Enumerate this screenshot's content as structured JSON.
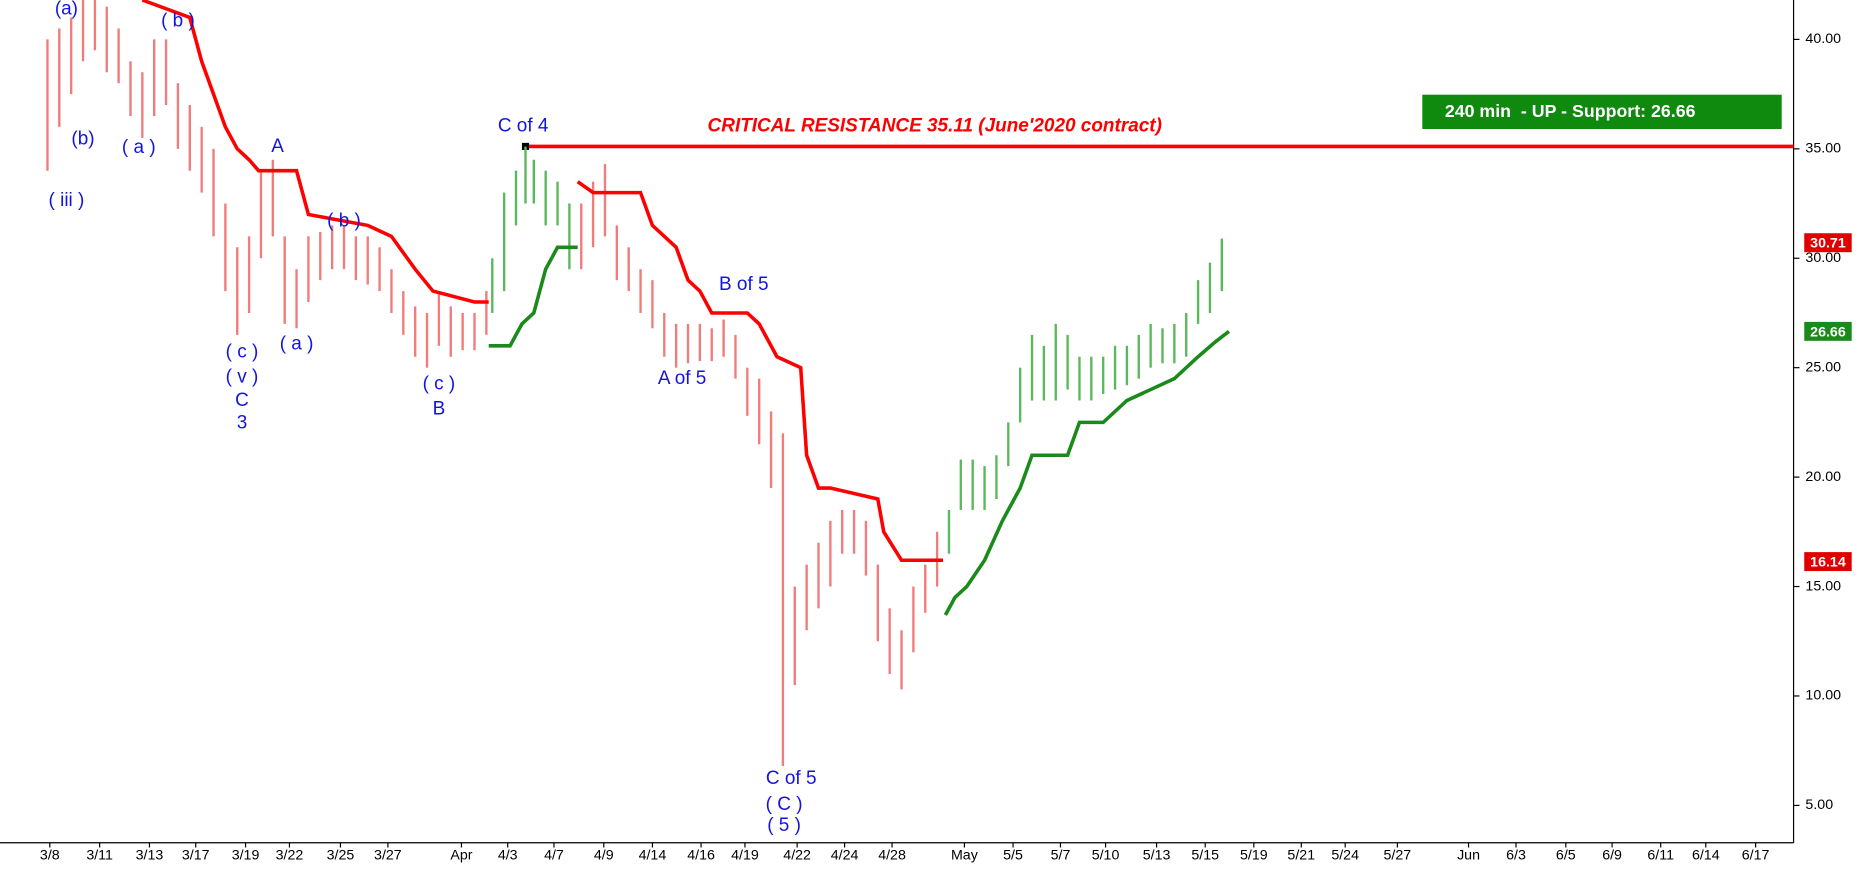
{
  "chart_data": {
    "type": "ohlc",
    "xlim": [
      0,
      75.5
    ],
    "ylim": [
      3.4,
      41.8
    ],
    "xticks": [
      {
        "value": 2.1,
        "label": "3/8"
      },
      {
        "value": 4.2,
        "label": "3/11"
      },
      {
        "value": 6.3,
        "label": "3/13"
      },
      {
        "value": 8.25,
        "label": "3/17"
      },
      {
        "value": 10.35,
        "label": "3/19"
      },
      {
        "value": 12.2,
        "label": "3/22"
      },
      {
        "value": 14.35,
        "label": "3/25"
      },
      {
        "value": 16.35,
        "label": "3/27"
      },
      {
        "value": 19.45,
        "label": "Apr"
      },
      {
        "value": 21.4,
        "label": "4/3"
      },
      {
        "value": 23.35,
        "label": "4/7"
      },
      {
        "value": 25.45,
        "label": "4/9"
      },
      {
        "value": 27.5,
        "label": "4/14"
      },
      {
        "value": 29.55,
        "label": "4/16"
      },
      {
        "value": 31.4,
        "label": "4/19"
      },
      {
        "value": 33.6,
        "label": "4/22"
      },
      {
        "value": 35.6,
        "label": "4/24"
      },
      {
        "value": 37.6,
        "label": "4/28"
      },
      {
        "value": 40.65,
        "label": "May"
      },
      {
        "value": 42.7,
        "label": "5/5"
      },
      {
        "value": 44.7,
        "label": "5/7"
      },
      {
        "value": 46.6,
        "label": "5/10"
      },
      {
        "value": 48.75,
        "label": "5/13"
      },
      {
        "value": 50.8,
        "label": "5/15"
      },
      {
        "value": 52.85,
        "label": "5/19"
      },
      {
        "value": 54.85,
        "label": "5/21"
      },
      {
        "value": 56.7,
        "label": "5/24"
      },
      {
        "value": 58.9,
        "label": "5/27"
      },
      {
        "value": 61.9,
        "label": "Jun"
      },
      {
        "value": 63.9,
        "label": "6/3"
      },
      {
        "value": 66,
        "label": "6/5"
      },
      {
        "value": 67.95,
        "label": "6/9"
      },
      {
        "value": 70,
        "label": "6/11"
      },
      {
        "value": 71.9,
        "label": "6/14"
      },
      {
        "value": 74,
        "label": "6/17"
      }
    ],
    "yticks": [
      {
        "value": 5,
        "label": "5.00"
      },
      {
        "value": 10,
        "label": "10.00"
      },
      {
        "value": 15,
        "label": "15.00"
      },
      {
        "value": 20,
        "label": "20.00"
      },
      {
        "value": 25,
        "label": "25.00"
      },
      {
        "value": 30,
        "label": "30.00"
      },
      {
        "value": 35,
        "label": "35.00"
      },
      {
        "value": 40,
        "label": "40.00"
      }
    ],
    "series": [
      {
        "color": "#f07c7c",
        "x": [
          2,
          2.5,
          3,
          3.5,
          4,
          4.5,
          5,
          5.5,
          6,
          6.5,
          7,
          7.5,
          8,
          8.5,
          9,
          9.5,
          10,
          10.5,
          11,
          11.5,
          12,
          12.5,
          13,
          13.5,
          14,
          14.5,
          15,
          15.5,
          16,
          16.5,
          17,
          17.5,
          18,
          18.5,
          19,
          19.5,
          20,
          20.5
        ],
        "high": [
          40,
          40.5,
          41,
          41.8,
          41.8,
          41.5,
          40.5,
          39,
          38.5,
          40,
          40,
          38,
          37,
          36,
          35,
          32.5,
          30.5,
          31,
          34,
          34.5,
          31,
          29.5,
          31,
          31.2,
          31.5,
          31.5,
          31,
          31,
          30.5,
          29.5,
          28.5,
          27.8,
          27.5,
          28.5,
          27.8,
          27.5,
          27.5,
          28.5
        ],
        "low": [
          34,
          36,
          37.5,
          39,
          39.5,
          38.5,
          38,
          36.5,
          35.5,
          36.5,
          37,
          35,
          34,
          33,
          31,
          28.5,
          26.5,
          27.5,
          30,
          31,
          27,
          26.8,
          28,
          29,
          29.5,
          29.5,
          29,
          28.8,
          28.5,
          27.5,
          26.5,
          25.5,
          25,
          26,
          25.5,
          25.8,
          25.8,
          26.5
        ]
      },
      {
        "color": "#5cb85c",
        "x": [
          20.75,
          21.25,
          21.75,
          22.15,
          22.5,
          23,
          23.5,
          24
        ],
        "high": [
          30,
          33,
          34,
          35.1,
          34.5,
          34,
          33.5,
          32.5
        ],
        "low": [
          27.5,
          28.5,
          31.5,
          32.5,
          32.5,
          31.5,
          31.5,
          29.5
        ]
      },
      {
        "color": "#f07c7c",
        "x": [
          24.5,
          25,
          25.5,
          26,
          26.5,
          27,
          27.5,
          28,
          28.5,
          29,
          29.5,
          30,
          30.5,
          31,
          31.5,
          32,
          32.5,
          33,
          33.5,
          34,
          34.5,
          35,
          35.5,
          36,
          36.5,
          37,
          37.5,
          38,
          38.5,
          39,
          39.5
        ],
        "high": [
          32.5,
          33.5,
          34.3,
          31.5,
          30.5,
          29.5,
          29,
          27.5,
          27,
          27,
          27,
          26.8,
          27.2,
          26.5,
          25,
          24.5,
          23,
          22,
          15,
          16,
          17,
          18,
          18.5,
          18.5,
          18,
          16,
          14,
          13,
          15,
          16,
          17.5
        ],
        "low": [
          29.5,
          30.5,
          31,
          29,
          28.5,
          27.5,
          26.8,
          25.5,
          25,
          25.2,
          25.3,
          25.3,
          25.5,
          24.5,
          22.8,
          21.5,
          19.5,
          6.8,
          10.5,
          13,
          14,
          15,
          16.5,
          16.5,
          15.5,
          12.5,
          11,
          10.3,
          12,
          13.8,
          15
        ]
      },
      {
        "color": "#5cb85c",
        "x": [
          40,
          40.5,
          41,
          41.5,
          42,
          42.5,
          43,
          43.5,
          44,
          44.5,
          45,
          45.5,
          46,
          46.5,
          47,
          47.5,
          48,
          48.5,
          49,
          49.5,
          50,
          50.5,
          51,
          51.5
        ],
        "high": [
          18.5,
          20.8,
          20.8,
          20.5,
          21,
          22.5,
          25,
          26.5,
          26,
          27,
          26.5,
          25.5,
          25.5,
          25.5,
          26,
          26,
          26.5,
          27,
          26.8,
          27,
          27.5,
          29,
          29.8,
          30.9
        ],
        "low": [
          16.5,
          18.5,
          18.5,
          18.5,
          19,
          20.5,
          22.5,
          23.5,
          23.5,
          23.5,
          24,
          23.5,
          23.5,
          23.8,
          24,
          24.2,
          24.5,
          25,
          25.2,
          25.2,
          25.5,
          27,
          27.5,
          28.5
        ]
      }
    ],
    "stops": [
      {
        "color": "#ff0000",
        "x": [
          6,
          8,
          8.5,
          9,
          9.5,
          10,
          10.5,
          10.9,
          12.5,
          13,
          14,
          15.5,
          16.5,
          17.5,
          18.25,
          20,
          20.6
        ],
        "values": [
          41.8,
          41,
          39,
          37.5,
          36,
          35,
          34.5,
          34,
          34,
          32,
          31.8,
          31.5,
          31,
          29.5,
          28.5,
          28,
          28
        ]
      },
      {
        "color": "#ff0000",
        "x": [
          24.35,
          25,
          27,
          27.5,
          28.5,
          29,
          29.5,
          30,
          31.5,
          32,
          32.75,
          33.75,
          34,
          34.5,
          35,
          37,
          37.25,
          38,
          39.75
        ],
        "values": [
          33.5,
          33,
          33,
          31.5,
          30.5,
          29,
          28.5,
          27.5,
          27.5,
          27,
          25.5,
          25,
          21,
          19.5,
          19.5,
          19,
          17.5,
          16.2,
          16.2
        ]
      },
      {
        "color": "#1a8a1a",
        "x": [
          20.6,
          21.5,
          22,
          22.5,
          23,
          23.5,
          24.35
        ],
        "values": [
          26,
          26,
          27,
          27.5,
          29.5,
          30.5,
          30.5
        ]
      },
      {
        "color": "#1a8a1a",
        "x": [
          39.85,
          40.25,
          40.75,
          41.5,
          42.25,
          43,
          43.5,
          44,
          45,
          45.5,
          46.5,
          47.5,
          48.5,
          49.5,
          50.5,
          51.25,
          51.8
        ],
        "values": [
          13.7,
          14.5,
          15,
          16.2,
          18,
          19.5,
          21,
          21,
          21,
          22.5,
          22.5,
          23.5,
          24,
          24.5,
          25.5,
          26.2,
          26.66
        ]
      }
    ],
    "resistance": {
      "label": "CRITICAL RESISTANCE 35.11 (June'2020 contract)",
      "value": 35.11,
      "x_start": 22.15,
      "color": "#ff0000"
    },
    "price_markers": [
      {
        "value": 30.71,
        "color": "#e00000"
      },
      {
        "value": 26.66,
        "color": "#1a8a1a"
      },
      {
        "value": 16.14,
        "color": "#e00000"
      }
    ],
    "info_box": "240 min  - UP - Support: 26.66",
    "annotations": [
      "(a)",
      "( b )",
      "(b)",
      "( a )",
      "( iii )",
      "A",
      "( b )",
      "( c )",
      "( v )",
      "C",
      "3",
      "( a )",
      "( c )",
      "B",
      "C of 4",
      "A of 5",
      "B of 5",
      "C of 5",
      "( C )",
      "( 5 )"
    ]
  }
}
